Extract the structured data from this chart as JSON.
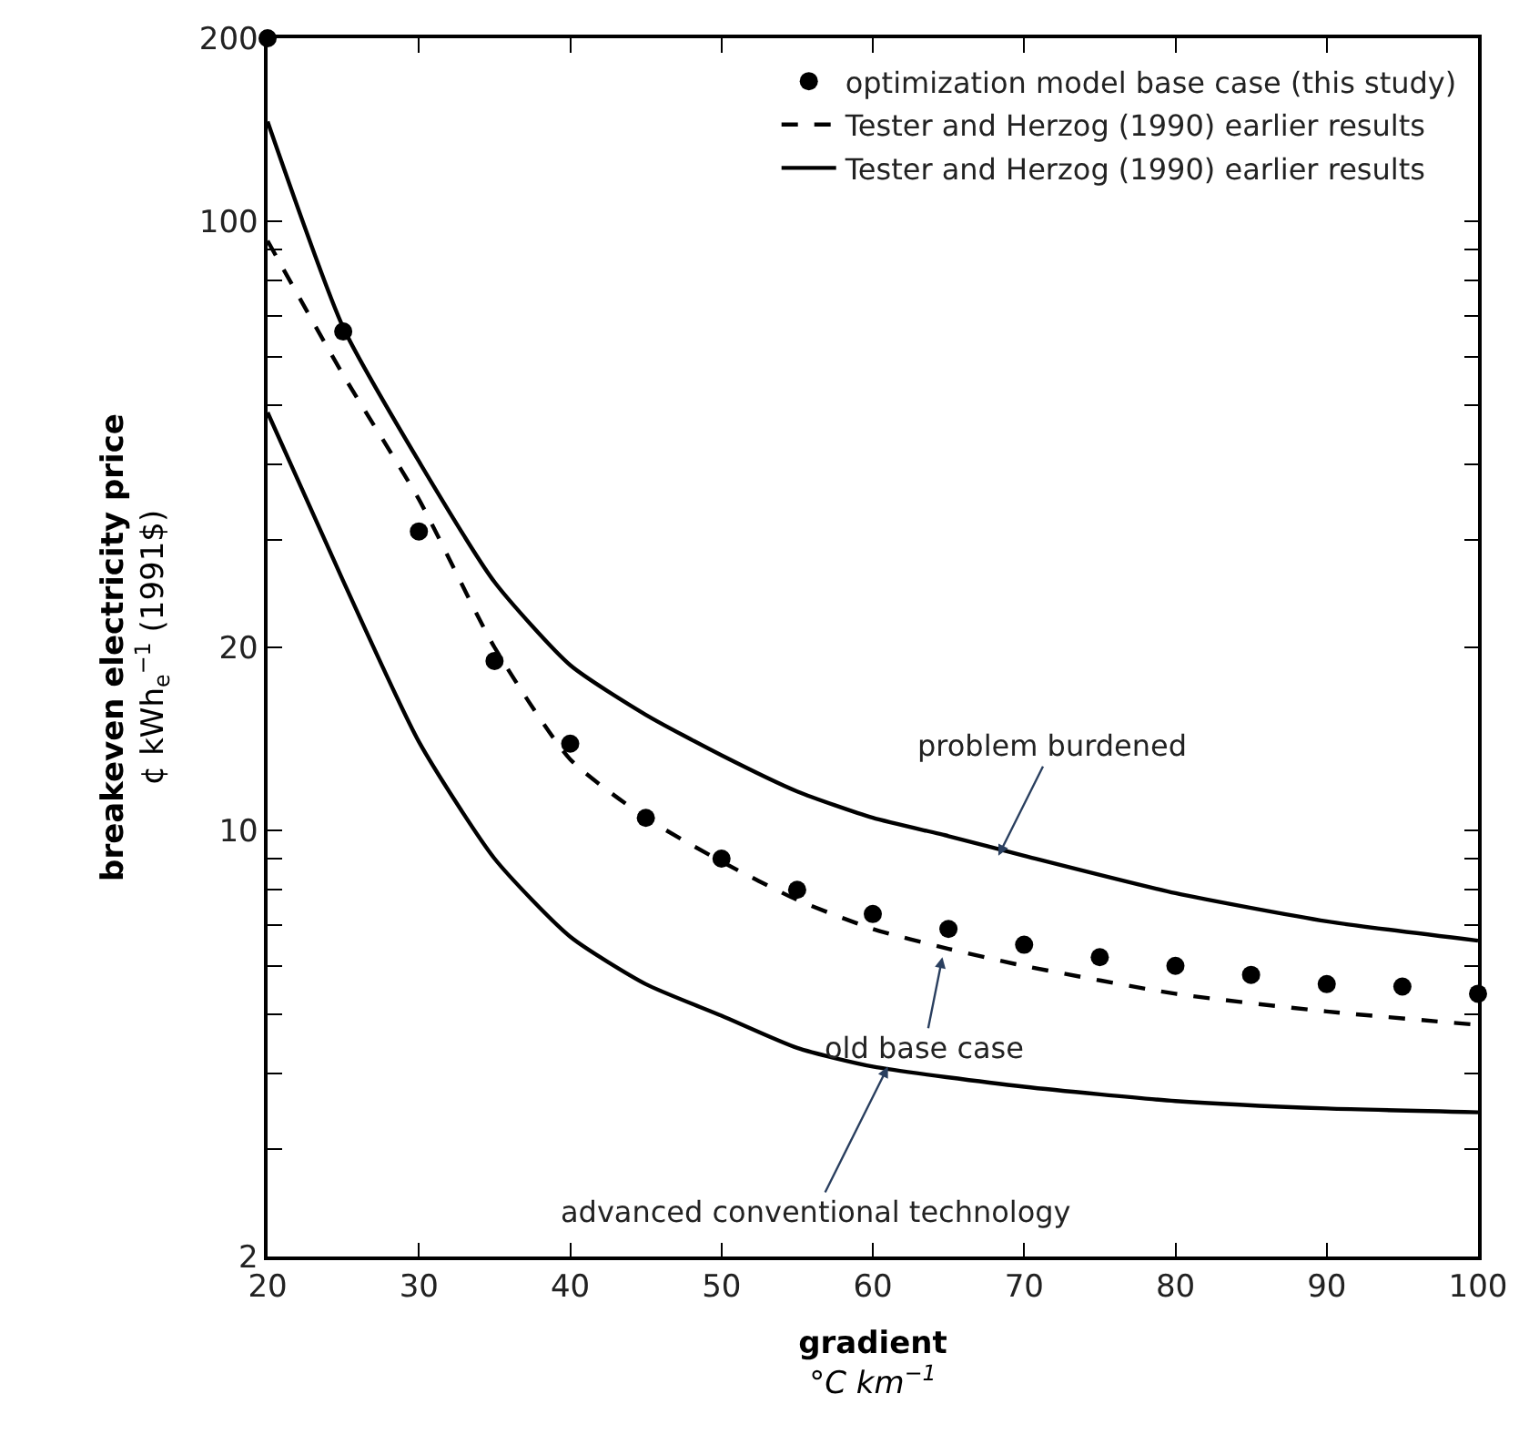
{
  "chart_data": {
    "type": "line",
    "xlabel": "gradient\n°C km$^{−1}$",
    "ylabel": "breakeven electricity price\n¢ kWh$_{e}$$^{−1}$ (1991$)",
    "log": "y",
    "legend": "top right",
    "xlim": [
      20,
      100
    ],
    "xticks": [
      20,
      30,
      40,
      50,
      60,
      70,
      80,
      90,
      100
    ],
    "ylim": [
      2,
      200
    ],
    "yticks": [
      2,
      {
        "value": 3,
        "label": null
      },
      {
        "value": 4,
        "label": null
      },
      {
        "value": 5,
        "label": null
      },
      {
        "value": 6,
        "label": null
      },
      {
        "value": 7,
        "label": null
      },
      {
        "value": 8,
        "label": null
      },
      {
        "value": 9,
        "label": null
      },
      10,
      20,
      {
        "value": 30,
        "label": null
      },
      {
        "value": 40,
        "label": null
      },
      {
        "value": 50,
        "label": null
      },
      {
        "value": 60,
        "label": null
      },
      {
        "value": 70,
        "label": null
      },
      {
        "value": 80,
        "label": null
      },
      {
        "value": 90,
        "label": null
      },
      100,
      200
    ],
    "series": [
      {
        "name": "optimization model base case (this study)",
        "type": "scatter",
        "marker": "circle",
        "color": "#000000",
        "x": [
          20,
          25,
          30,
          35,
          40,
          45,
          50,
          55,
          60,
          65,
          70,
          75,
          80,
          85,
          90,
          95,
          100
        ],
        "values": [
          200,
          66,
          31,
          19,
          13.9,
          10.5,
          9.0,
          8.0,
          7.3,
          6.9,
          6.5,
          6.2,
          6.0,
          5.8,
          5.6,
          5.55,
          5.4
        ]
      },
      {
        "name": "Tester and Herzog (1990) earlier results",
        "line_style": "dashed",
        "marker": "none",
        "color": "#000000",
        "x": [
          20,
          25,
          30,
          35,
          40,
          45,
          50,
          55,
          60,
          65,
          70,
          80,
          90,
          100
        ],
        "values": [
          93,
          56,
          35,
          20,
          13.1,
          10.5,
          8.9,
          7.7,
          6.9,
          6.4,
          6.0,
          5.4,
          5.05,
          4.8
        ]
      },
      {
        "name": "Tester and Herzog (1990) earlier results",
        "line_style": "solid",
        "marker": "none",
        "color": "#000000",
        "x": [
          20,
          25,
          30,
          35,
          40,
          45,
          50,
          55,
          60,
          65,
          70,
          80,
          90,
          100
        ],
        "values": [
          146,
          67,
          40.4,
          25.6,
          18.7,
          15.5,
          13.3,
          11.6,
          10.5,
          9.8,
          9.1,
          7.9,
          7.1,
          6.6
        ]
      },
      {
        "line_style": "solid",
        "marker": "none",
        "color": "#000000",
        "x": [
          20,
          25,
          30,
          35,
          40,
          45,
          50,
          55,
          60,
          70,
          80,
          90,
          100
        ],
        "values": [
          48.6,
          25.7,
          14,
          9.0,
          6.7,
          5.6,
          4.97,
          4.4,
          4.1,
          3.8,
          3.6,
          3.5,
          3.45
        ]
      }
    ],
    "annotations": [
      {
        "text": "problem burdened",
        "x": 68.3,
        "y": 9.1
      },
      {
        "text": "old base case",
        "x": 64.6,
        "y": 6.2
      },
      {
        "text": "advanced conventional technology",
        "x": 61.0,
        "y": 4.1
      }
    ]
  }
}
